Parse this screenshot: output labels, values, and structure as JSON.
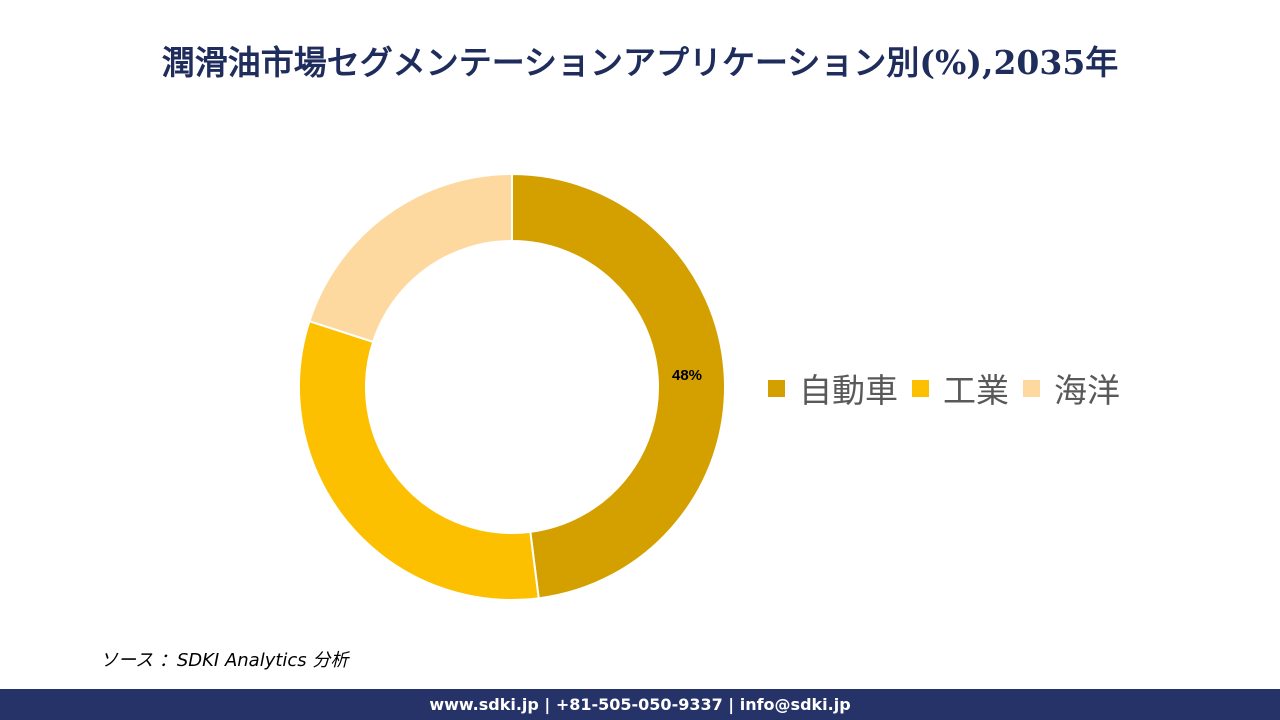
{
  "header": {
    "title": "潤滑油市場セグメンテーションアプリケーション別(%),2035年"
  },
  "chart_data": {
    "type": "pie",
    "subtype": "donut",
    "title": "潤滑油市場セグメンテーションアプリケーション別(%),2035年",
    "categories": [
      "自動車",
      "工業",
      "海洋"
    ],
    "values": [
      48,
      32,
      20
    ],
    "colors": [
      "#d4a000",
      "#fcc000",
      "#fdd9a0"
    ],
    "data_labels": [
      "48%",
      "",
      ""
    ],
    "legend_position": "right",
    "start_angle_deg": 0,
    "direction": "clockwise"
  },
  "chart": {
    "data_label_0": "48%"
  },
  "legend": {
    "items": [
      {
        "label": "自動車",
        "color": "#d4a000"
      },
      {
        "label": "工業",
        "color": "#fcc000"
      },
      {
        "label": "海洋",
        "color": "#fdd9a0"
      }
    ]
  },
  "source": {
    "text": "ソース ：SDKI Analytics  分析"
  },
  "footer": {
    "text": "www.sdki.jp | +81-505-050-9337 | info@sdki.jp"
  }
}
